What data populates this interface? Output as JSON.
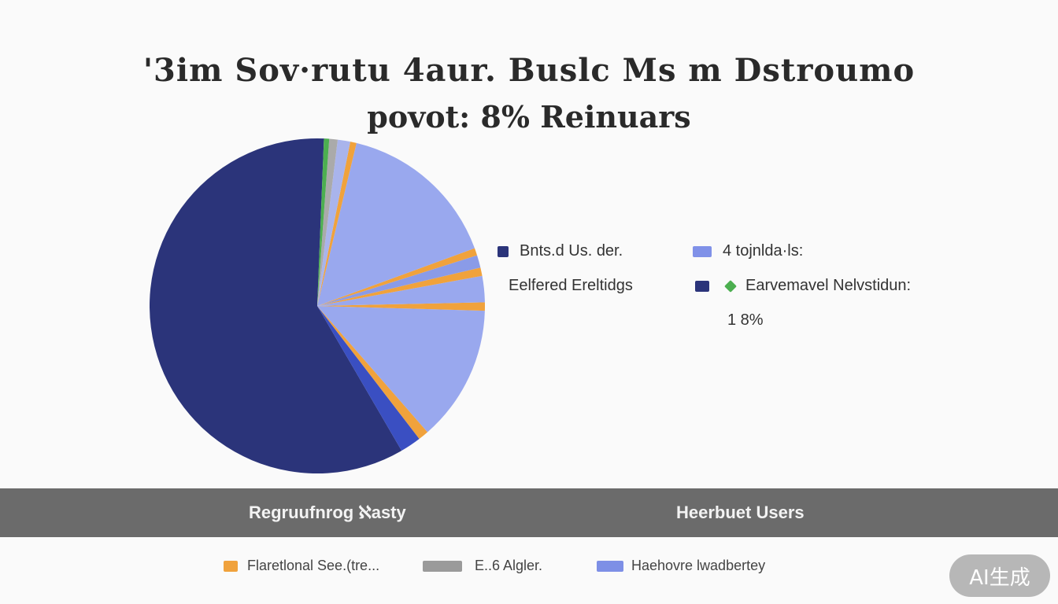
{
  "chart_data": {
    "type": "pie",
    "title": "'3im Sov·rutu 4aur. Buslc Ms m Dstroumo",
    "subtitle": "povot: 8% Reinuars",
    "slices": [
      {
        "label": "",
        "value": 58.5,
        "color": "#2b347a"
      },
      {
        "label": "",
        "value": 2.0,
        "color": "#3a4fc2"
      },
      {
        "label": "",
        "value": 1.0,
        "color": "#f0a23c"
      },
      {
        "label": "",
        "value": 13.0,
        "color": "#99a8ee"
      },
      {
        "label": "",
        "value": 0.8,
        "color": "#f0a23c"
      },
      {
        "label": "",
        "value": 2.5,
        "color": "#99a8ee"
      },
      {
        "label": "",
        "value": 0.8,
        "color": "#f0a23c"
      },
      {
        "label": "",
        "value": 1.2,
        "color": "#8a9be8"
      },
      {
        "label": "",
        "value": 0.7,
        "color": "#f0a23c"
      },
      {
        "label": "",
        "value": 15.5,
        "color": "#99a8ee"
      },
      {
        "label": "",
        "value": 0.6,
        "color": "#f0a23c"
      },
      {
        "label": "",
        "value": 1.2,
        "color": "#a9b4ec"
      },
      {
        "label": "",
        "value": 0.8,
        "color": "#aaaaaa"
      },
      {
        "label": "",
        "value": 0.5,
        "color": "#4caf50"
      }
    ]
  },
  "legend": [
    {
      "label": "Bnts.d Us. der.",
      "color": "#2b347a"
    },
    {
      "label": "4 tojnlda·ls:",
      "color": "#8091e8"
    },
    {
      "label": "Earvemavel Nelvstidun:",
      "color": "#4caf50"
    }
  ],
  "side_labels": {
    "left": "Eelfered Ereltidgs",
    "percent": "1 8%"
  },
  "band": {
    "left": "Regruufnrog ℵasty",
    "right": "Heerbuet Users"
  },
  "bottom_legend": [
    {
      "label": "Flaretlonal See.(tre...",
      "color": "#f0a23c"
    },
    {
      "label": "E..6 Algler.",
      "color": "#9a9a9a"
    },
    {
      "label": "Haehovre lwadbertey",
      "color": "#7d8fe6"
    }
  ],
  "watermark": "AI生成"
}
